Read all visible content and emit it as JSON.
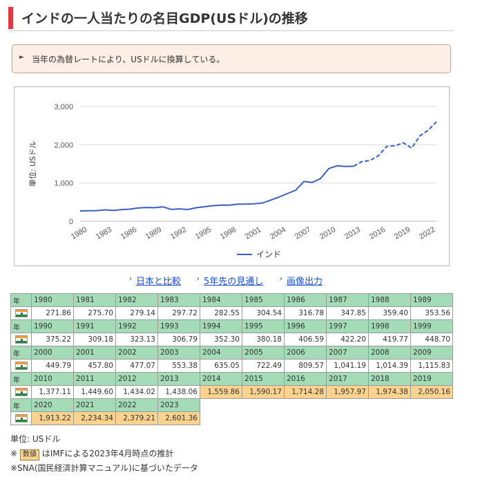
{
  "header": {
    "title": "インドの一人当たりの名目GDP(USドル)の推移"
  },
  "note": {
    "text": "当年の為替レートにより、USドルに換算している。"
  },
  "links": [
    {
      "label": "日本と比較"
    },
    {
      "label": "5年先の見通し"
    },
    {
      "label": "画像出力"
    }
  ],
  "chart_data": {
    "type": "line",
    "ylabel": "単位: USドル",
    "ylim": [
      0,
      3000
    ],
    "yticks": [
      0,
      1000,
      2000,
      3000
    ],
    "ytick_labels": [
      "0",
      "1,000",
      "2,000",
      "3,000"
    ],
    "xlim": [
      1980,
      2023
    ],
    "xticks": [
      1980,
      1983,
      1986,
      1989,
      1992,
      1995,
      1998,
      2001,
      2004,
      2007,
      2010,
      2013,
      2016,
      2019,
      2022
    ],
    "grid": true,
    "legend": "bottom",
    "estimate_from": 2014,
    "series": [
      {
        "name": "インド",
        "color": "#3a5fc4",
        "x": [
          1980,
          1981,
          1982,
          1983,
          1984,
          1985,
          1986,
          1987,
          1988,
          1989,
          1990,
          1991,
          1992,
          1993,
          1994,
          1995,
          1996,
          1997,
          1998,
          1999,
          2000,
          2001,
          2002,
          2003,
          2004,
          2005,
          2006,
          2007,
          2008,
          2009,
          2010,
          2011,
          2012,
          2013,
          2014,
          2015,
          2016,
          2017,
          2018,
          2019,
          2020,
          2021,
          2022,
          2023
        ],
        "values": [
          271.86,
          275.7,
          279.14,
          297.72,
          282.55,
          304.54,
          316.78,
          347.85,
          359.4,
          353.56,
          375.22,
          309.18,
          323.13,
          306.79,
          352.3,
          380.18,
          406.59,
          422.2,
          419.77,
          448.7,
          449.79,
          457.8,
          477.07,
          553.38,
          635.05,
          722.49,
          809.57,
          1041.19,
          1014.39,
          1115.83,
          1377.11,
          1449.6,
          1434.02,
          1438.06,
          1559.86,
          1590.17,
          1714.28,
          1957.97,
          1974.38,
          2050.16,
          1913.22,
          2234.34,
          2379.21,
          2601.36
        ]
      }
    ]
  },
  "table": {
    "row_label": "年",
    "rows": [
      {
        "years": [
          "1980",
          "1981",
          "1982",
          "1983",
          "1984",
          "1985",
          "1986",
          "1987",
          "1988",
          "1989"
        ],
        "values": [
          "271.86",
          "275.70",
          "279.14",
          "297.72",
          "282.55",
          "304.54",
          "316.78",
          "347.85",
          "359.40",
          "353.56"
        ],
        "estimate": [
          false,
          false,
          false,
          false,
          false,
          false,
          false,
          false,
          false,
          false
        ]
      },
      {
        "years": [
          "1990",
          "1991",
          "1992",
          "1993",
          "1994",
          "1995",
          "1996",
          "1997",
          "1998",
          "1999"
        ],
        "values": [
          "375.22",
          "309.18",
          "323.13",
          "306.79",
          "352.30",
          "380.18",
          "406.59",
          "422.20",
          "419.77",
          "448.70"
        ],
        "estimate": [
          false,
          false,
          false,
          false,
          false,
          false,
          false,
          false,
          false,
          false
        ]
      },
      {
        "years": [
          "2000",
          "2001",
          "2002",
          "2003",
          "2004",
          "2005",
          "2006",
          "2007",
          "2008",
          "2009"
        ],
        "values": [
          "449.79",
          "457.80",
          "477.07",
          "553.38",
          "635.05",
          "722.49",
          "809.57",
          "1,041.19",
          "1,014.39",
          "1,115.83"
        ],
        "estimate": [
          false,
          false,
          false,
          false,
          false,
          false,
          false,
          false,
          false,
          false
        ]
      },
      {
        "years": [
          "2010",
          "2011",
          "2012",
          "2013",
          "2014",
          "2015",
          "2016",
          "2017",
          "2018",
          "2019"
        ],
        "values": [
          "1,377.11",
          "1,449.60",
          "1,434.02",
          "1,438.06",
          "1,559.86",
          "1,590.17",
          "1,714.28",
          "1,957.97",
          "1,974.38",
          "2,050.16"
        ],
        "estimate": [
          false,
          false,
          false,
          false,
          true,
          true,
          true,
          true,
          true,
          true
        ]
      },
      {
        "years": [
          "2020",
          "2021",
          "2022",
          "2023"
        ],
        "values": [
          "1,913.22",
          "2,234.34",
          "2,379.21",
          "2,601.36"
        ],
        "estimate": [
          true,
          true,
          true,
          true
        ]
      }
    ]
  },
  "footer": {
    "unit": "単位: USドル",
    "est_prefix": "※",
    "est_chip": "数値",
    "est_text": "はIMFによる2023年4月時点の推計",
    "sna": "※SNA(国民経済計算マニュアル)に基づいたデータ"
  }
}
